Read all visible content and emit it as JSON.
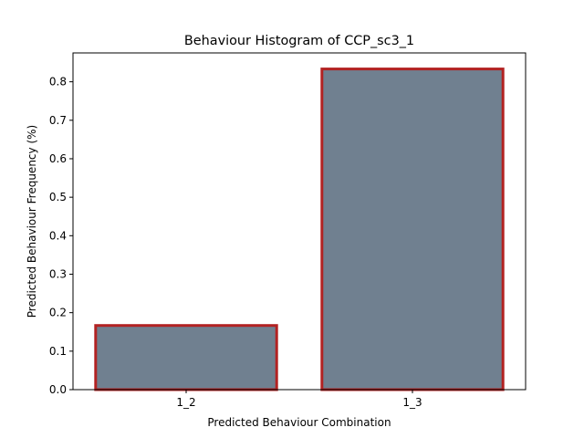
{
  "chart_data": {
    "type": "bar",
    "title": "Behaviour Histogram of CCP_sc3_1",
    "xlabel": "Predicted Behaviour Combination",
    "ylabel": "Predicted Behaviour Frequency (%)",
    "categories": [
      "1_2",
      "1_3"
    ],
    "values": [
      0.1667,
      0.8333
    ],
    "ylim": [
      0,
      0.875
    ],
    "yticks": [
      0.0,
      0.1,
      0.2,
      0.3,
      0.4,
      0.5,
      0.6,
      0.7,
      0.8
    ],
    "ytick_labels": [
      "0.0",
      "0.1",
      "0.2",
      "0.3",
      "0.4",
      "0.5",
      "0.6",
      "0.7",
      "0.8"
    ],
    "grid": false,
    "legend": "none",
    "colors": {
      "bar_fill": "#708090",
      "bar_edge": "#b22222"
    }
  }
}
